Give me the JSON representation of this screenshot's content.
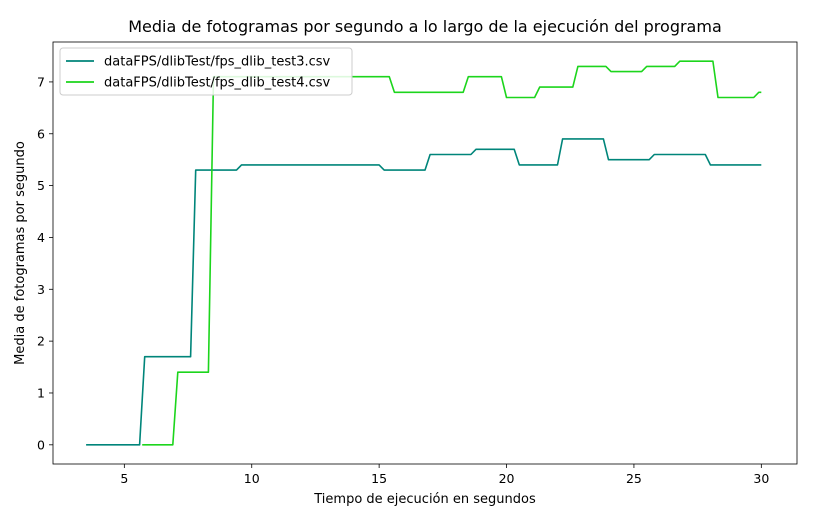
{
  "chart_data": {
    "type": "line",
    "title": "Media de fotogramas por segundo a lo largo de la ejecución del programa",
    "xlabel": "Tiempo de ejecución en segundos",
    "ylabel": "Media de fotogramas por segundo",
    "xlim": [
      2.2,
      31.4
    ],
    "ylim": [
      -0.37,
      7.77
    ],
    "xticks": [
      5,
      10,
      15,
      20,
      25,
      30
    ],
    "yticks": [
      0,
      1,
      2,
      3,
      4,
      5,
      6,
      7
    ],
    "grid": false,
    "legend_position": "top-left",
    "series": [
      {
        "name": "dataFPS/dlibTest/fps_dlib_test3.csv",
        "color": "#00857a",
        "x": [
          3.5,
          5.6,
          5.8,
          7.6,
          7.8,
          9.4,
          9.6,
          15.0,
          15.2,
          16.8,
          17.0,
          18.6,
          18.8,
          20.3,
          20.5,
          22.0,
          22.2,
          23.8,
          24.0,
          25.6,
          25.8,
          27.8,
          28.0,
          30.0
        ],
        "y": [
          0,
          0,
          1.7,
          1.7,
          5.3,
          5.3,
          5.4,
          5.4,
          5.3,
          5.3,
          5.6,
          5.6,
          5.7,
          5.7,
          5.4,
          5.4,
          5.9,
          5.9,
          5.5,
          5.5,
          5.6,
          5.6,
          5.4,
          5.4
        ]
      },
      {
        "name": "dataFPS/dlibTest/fps_dlib_test4.csv",
        "color": "#1cd51c",
        "x": [
          5.7,
          6.9,
          7.1,
          8.3,
          8.5,
          9.3,
          9.5,
          15.4,
          15.6,
          18.3,
          18.5,
          19.8,
          20.0,
          21.1,
          21.3,
          22.6,
          22.8,
          23.9,
          24.1,
          25.3,
          25.5,
          26.6,
          26.8,
          28.1,
          28.3,
          29.7,
          29.9,
          30.0
        ],
        "y": [
          0,
          0,
          1.4,
          1.4,
          7.1,
          7.1,
          7.1,
          7.1,
          6.8,
          6.8,
          7.1,
          7.1,
          6.7,
          6.7,
          6.9,
          6.9,
          7.3,
          7.3,
          7.2,
          7.2,
          7.3,
          7.3,
          7.4,
          7.4,
          6.7,
          6.7,
          6.8,
          6.8
        ]
      }
    ]
  }
}
